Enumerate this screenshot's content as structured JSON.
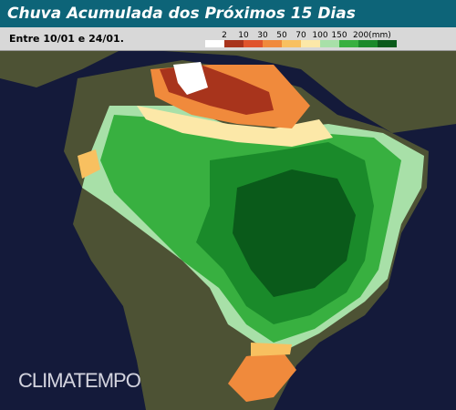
{
  "header": {
    "title": "Chuva Acumulada dos Próximos 15 Dias",
    "period": "Entre 10/01 e 24/01."
  },
  "legend": {
    "labels": [
      "2",
      "10",
      "30",
      "50",
      "70",
      "100",
      "150",
      "200(mm)"
    ],
    "colors": [
      "#ffffff",
      "#a8341c",
      "#e0542c",
      "#f08a3c",
      "#f8c060",
      "#fce8a8",
      "#a8e0a8",
      "#38b040",
      "#1a8a2a",
      "#0a5a1a"
    ]
  },
  "watermark": "CLIMATEMPO"
}
